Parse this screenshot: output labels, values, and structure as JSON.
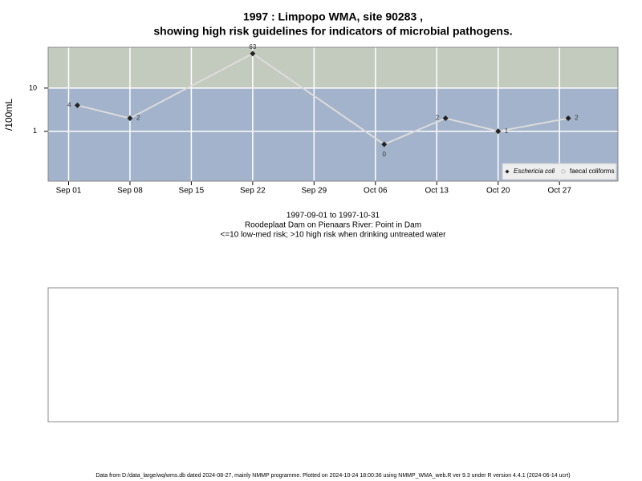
{
  "chart_data": {
    "type": "line",
    "title": "1997 : Limpopo WMA, site 90283 ,",
    "subtitle": "showing high risk guidelines for indicators of microbial pathogens.",
    "y_label": "/100mL",
    "x": [
      "1997-09-02",
      "1997-09-08",
      "1997-09-22",
      "1997-10-07",
      "1997-10-14",
      "1997-10-20",
      "1997-10-28"
    ],
    "series": [
      {
        "name": "Eschericia coli",
        "color": "#222222",
        "line_color": "#dcdcdc",
        "values": [
          4,
          2,
          63,
          0.5,
          2,
          1,
          2
        ],
        "value_labels": [
          "4",
          "2",
          "63",
          "0",
          "2",
          "1",
          "2"
        ]
      },
      {
        "name": "faecal coliforms",
        "color": "#ffffff",
        "values": [
          null,
          null,
          null,
          null,
          null,
          null,
          null
        ]
      }
    ],
    "log_y": true,
    "ylim": [
      0.07,
      88
    ],
    "yticks": [
      1,
      10
    ],
    "guideline": 10,
    "xlim": [
      "1997-08-29T16:00",
      "1997-11-02T16:00"
    ],
    "xticks": [
      {
        "value": "1997-09-01",
        "label": "Sep 01"
      },
      {
        "value": "1997-09-08",
        "label": "Sep 08"
      },
      {
        "value": "1997-09-15",
        "label": "Sep 15"
      },
      {
        "value": "1997-09-22",
        "label": "Sep 22"
      },
      {
        "value": "1997-09-29",
        "label": "Sep 29"
      },
      {
        "value": "1997-10-06",
        "label": "Oct 06"
      },
      {
        "value": "1997-10-13",
        "label": "Oct 13"
      },
      {
        "value": "1997-10-20",
        "label": "Oct 20"
      },
      {
        "value": "1997-10-27",
        "label": "Oct 27"
      }
    ],
    "grid": true,
    "legend": "bottom-right",
    "notes": [
      "1997-09-01 to 1997-10-31",
      "Roodeplaat Dam on Pienaars River: Point in Dam",
      "<=10 low-med risk; >10 high risk when drinking untreated water"
    ],
    "footer": "Data from D:/data_large/wq/wms.db dated 2024-08-27, mainly NMMP programme. Plotted on 2024-10-24 18:00:36 using NMMP_WMA_web.R ver 9.3 under R version 4.4.1 (2024-06-14 ucrt)"
  }
}
